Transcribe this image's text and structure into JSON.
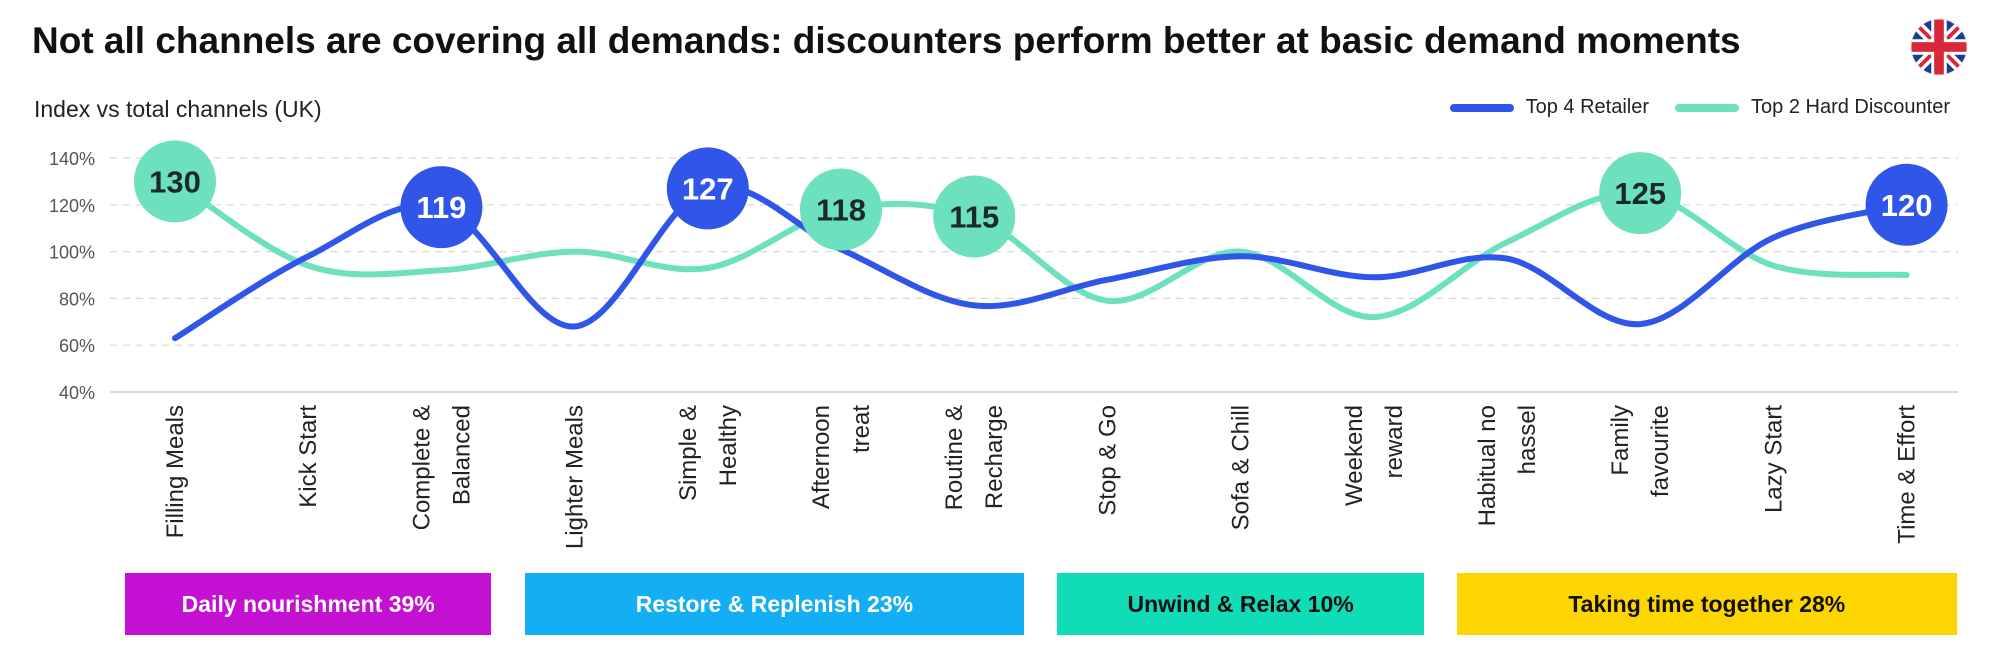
{
  "title": "Not all channels are covering all demands: discounters perform better at basic demand moments",
  "y_axis_title": "Index vs total channels (UK)",
  "colors": {
    "retailer": "#2f56e8",
    "discounter": "#6de0bd",
    "gridline": "#d8d8d8",
    "daily": "#c410d3",
    "restore": "#14aef5",
    "unwind": "#11dcb8",
    "together": "#fdd500"
  },
  "legend": [
    {
      "label": "Top 4 Retailer",
      "color": "#2f56e8"
    },
    {
      "label": "Top 2 Hard Discounter",
      "color": "#6de0bd"
    }
  ],
  "groups": [
    {
      "label": "Daily nourishment 39%",
      "color": "#c410d3",
      "text_color": "#ffffff",
      "span": [
        0,
        2
      ]
    },
    {
      "label": "Restore & Replenish 23%",
      "color": "#14aef5",
      "text_color": "#ffffff",
      "span": [
        3,
        6
      ]
    },
    {
      "label": "Unwind & Relax 10%",
      "color": "#11dcb8",
      "text_color": "#111111",
      "span": [
        7,
        9
      ]
    },
    {
      "label": "Taking time together 28%",
      "color": "#fdd500",
      "text_color": "#111111",
      "span": [
        10,
        13
      ]
    }
  ],
  "chart_data": {
    "type": "line",
    "ylabel": "Index vs total channels (UK)",
    "ylim": [
      40,
      140
    ],
    "yticks": [
      "40%",
      "60%",
      "80%",
      "100%",
      "120%",
      "140%"
    ],
    "ytick_values": [
      40,
      60,
      80,
      100,
      120,
      140
    ],
    "grid": true,
    "legend_position": "top-right",
    "categories": [
      [
        "Filling Meals"
      ],
      [
        "Kick Start"
      ],
      [
        "Complete &",
        "Balanced"
      ],
      [
        "Lighter Meals"
      ],
      [
        "Simple &",
        "Healthy"
      ],
      [
        "Afternoon",
        "treat"
      ],
      [
        "Routine &",
        "Recharge"
      ],
      [
        "Stop & Go"
      ],
      [
        "Sofa & Chill"
      ],
      [
        "Weekend",
        "reward"
      ],
      [
        "Habitual no",
        "hassel"
      ],
      [
        "Family",
        "favourite"
      ],
      [
        "Lazy Start"
      ],
      [
        "Time & Effort"
      ]
    ],
    "series": [
      {
        "name": "Top 4 Retailer",
        "color": "#2f56e8",
        "values": [
          63,
          98,
          119,
          68,
          127,
          101,
          77,
          88,
          98,
          89,
          97,
          69,
          106,
          120
        ],
        "labels": [
          null,
          null,
          "119",
          null,
          "127",
          null,
          null,
          null,
          null,
          null,
          null,
          null,
          null,
          "120"
        ]
      },
      {
        "name": "Top 2 Hard Discounter",
        "color": "#6de0bd",
        "values": [
          130,
          94,
          92,
          100,
          93,
          118,
          115,
          79,
          100,
          72,
          104,
          125,
          94,
          90
        ],
        "labels": [
          "130",
          null,
          null,
          null,
          null,
          "118",
          "115",
          null,
          null,
          null,
          null,
          "125",
          null,
          null
        ]
      }
    ]
  }
}
